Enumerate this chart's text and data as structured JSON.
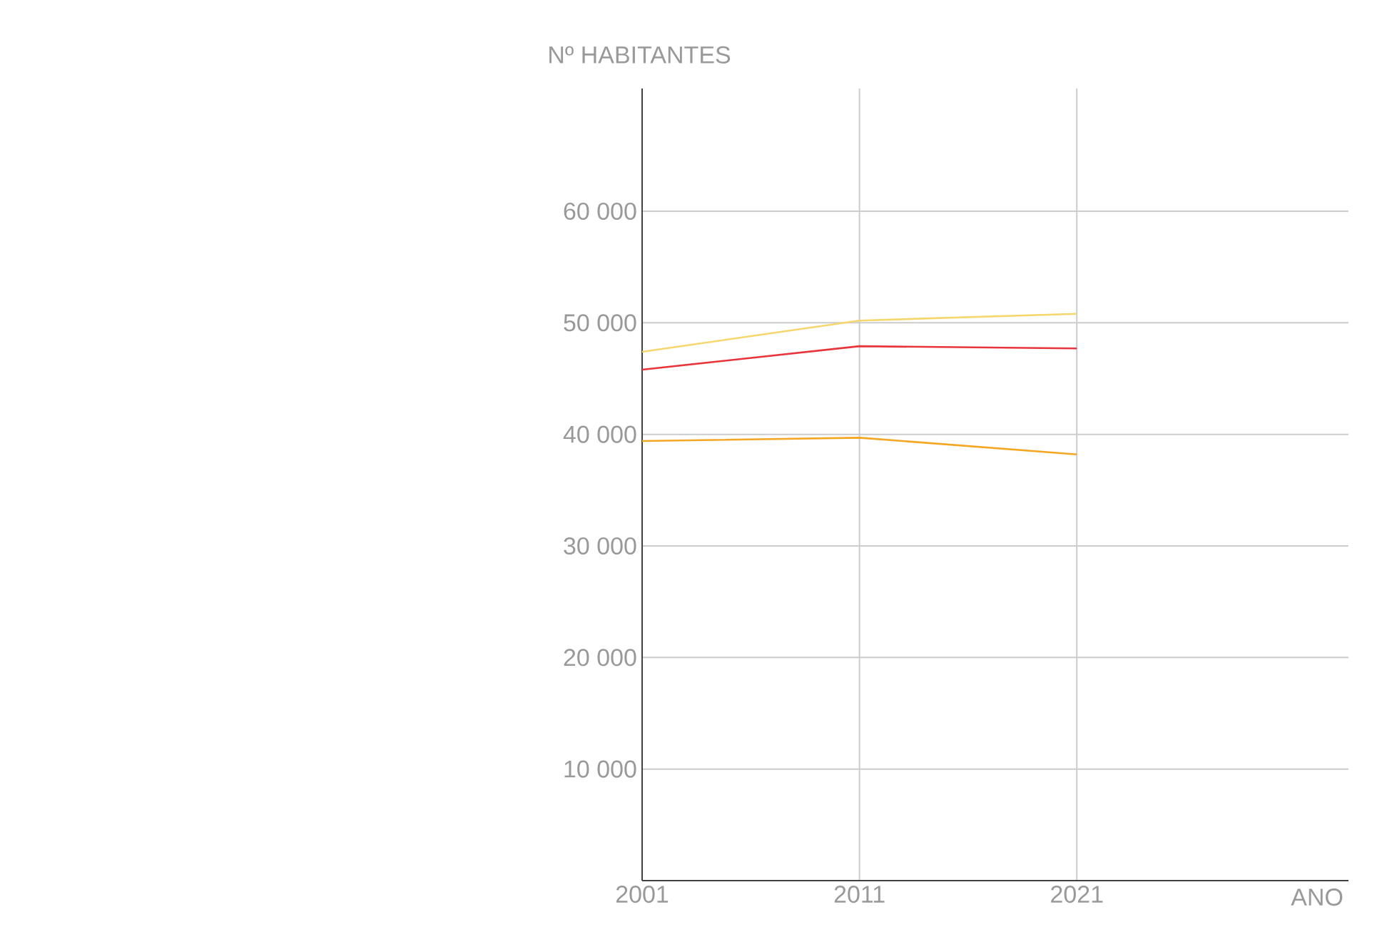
{
  "chart_data": {
    "type": "line",
    "ylabel": "Nº HABITANTES",
    "xlabel": "ANO",
    "x": [
      2001,
      2011,
      2021
    ],
    "series": [
      {
        "color": "#f5d76e",
        "values": [
          47400,
          50200,
          50800
        ]
      },
      {
        "color": "#e8353b",
        "values": [
          45800,
          47900,
          47700
        ]
      },
      {
        "color": "#f5a623",
        "values": [
          39400,
          39700,
          38200
        ]
      }
    ],
    "xlim": [
      2001,
      2033.5
    ],
    "ylim": [
      0,
      71000
    ],
    "xticks": [
      2001,
      2011,
      2021
    ],
    "yticks": [
      {
        "value": 10000,
        "label": "10 000"
      },
      {
        "value": 20000,
        "label": "20 000"
      },
      {
        "value": 30000,
        "label": "30 000"
      },
      {
        "value": 40000,
        "label": "40 000"
      },
      {
        "value": 50000,
        "label": "50 000"
      },
      {
        "value": 60000,
        "label": "60 000"
      }
    ],
    "grid": true,
    "marker": "none",
    "line_style": "solid"
  }
}
